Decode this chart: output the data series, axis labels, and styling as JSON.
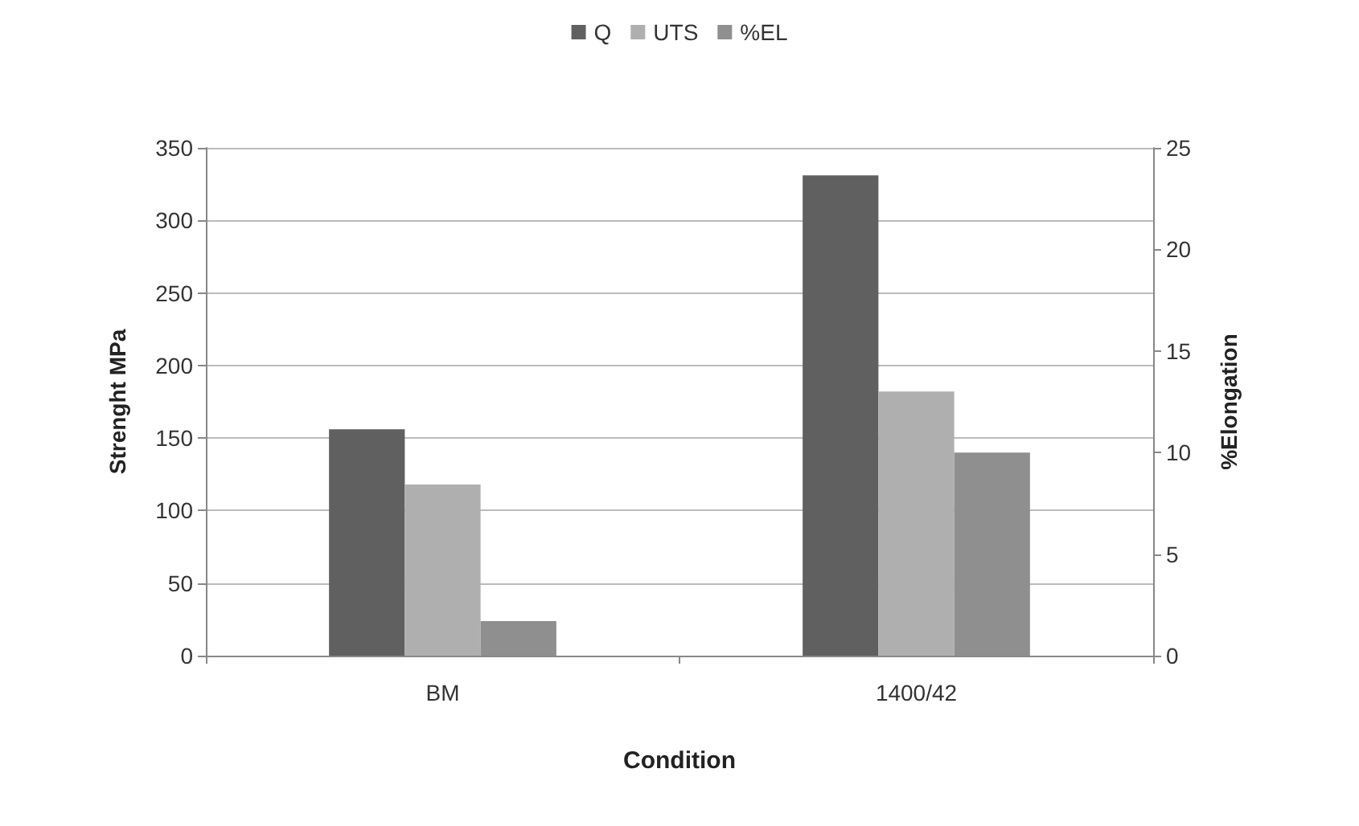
{
  "chart_data": {
    "type": "bar",
    "xlabel": "Condition",
    "ylabel": "Strenght MPa",
    "y2label": "%Elongation",
    "categories": [
      "BM",
      "1400/42"
    ],
    "series": [
      {
        "name": "Q",
        "color": "#606060",
        "values": [
          156,
          331
        ]
      },
      {
        "name": "UTS",
        "color": "#afafaf",
        "values": [
          118,
          182
        ]
      },
      {
        "name": "%EL",
        "color": "#8f8f8f",
        "values": [
          1.7,
          10.0
        ],
        "axis": "y2"
      }
    ],
    "ylim": [
      0,
      350
    ],
    "yticks": [
      0,
      50,
      100,
      150,
      200,
      250,
      300,
      350
    ],
    "y2lim": [
      0,
      25
    ],
    "y2ticks": [
      0,
      5,
      10,
      15,
      20,
      25
    ],
    "grid": "y",
    "legend": "top"
  }
}
